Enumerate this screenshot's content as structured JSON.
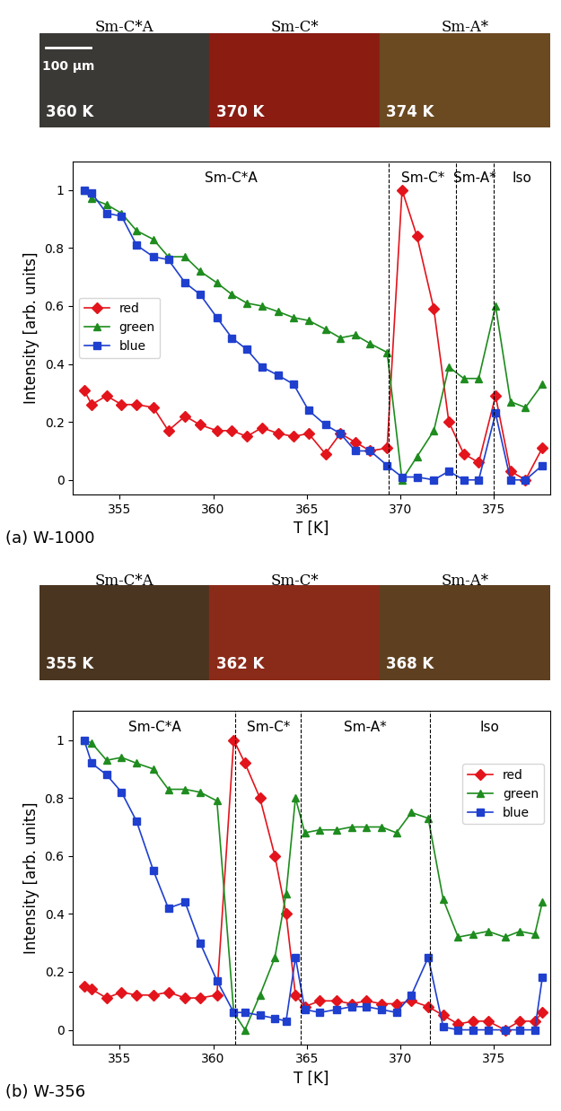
{
  "chart_data": [
    {
      "type": "line",
      "caption": "(a) W-1000",
      "images": [
        {
          "label": "Sm-C*A",
          "temperature": "360 K",
          "color": "#3b3936"
        },
        {
          "label": "Sm-C*",
          "temperature": "370 K",
          "color": "#8a1c12"
        },
        {
          "label": "Sm-A*",
          "temperature": "374 K",
          "color": "#6b4a22"
        }
      ],
      "scale_bar": "100 µm",
      "xlabel": "T [K]",
      "ylabel": "Intensity [arb. units]",
      "xlim": [
        352.5,
        378
      ],
      "xticks": [
        355,
        360,
        365,
        370,
        375
      ],
      "ylim": [
        -0.05,
        1.1
      ],
      "yticks": [
        0,
        0.2,
        0.4,
        0.6,
        0.8,
        1
      ],
      "phases": [
        "Sm-C*A",
        "Sm-C*",
        "Sm-A*",
        "Iso"
      ],
      "phase_boundaries": [
        369.4,
        373.0,
        375.0
      ],
      "legend": "center left",
      "x": [
        353.1,
        353.5,
        354.3,
        355.1,
        355.9,
        356.8,
        357.6,
        358.5,
        359.3,
        360.2,
        361.0,
        361.8,
        362.6,
        363.5,
        364.3,
        365.1,
        366.0,
        366.8,
        367.6,
        368.4,
        369.3,
        370.1,
        370.9,
        371.8,
        372.6,
        373.4,
        374.2,
        375.1,
        375.9,
        376.7,
        377.6
      ],
      "series": [
        {
          "name": "red",
          "color": "#e3141c",
          "marker": "diamond",
          "values": [
            0.31,
            0.26,
            0.29,
            0.26,
            0.26,
            0.25,
            0.17,
            0.22,
            0.19,
            0.17,
            0.17,
            0.15,
            0.18,
            0.16,
            0.15,
            0.16,
            0.09,
            0.16,
            0.13,
            0.1,
            0.11,
            1.0,
            0.84,
            0.59,
            0.2,
            0.09,
            0.06,
            0.29,
            0.03,
            0.0,
            0.11
          ]
        },
        {
          "name": "green",
          "color": "#1e8c1e",
          "marker": "triangle",
          "values": [
            1.0,
            0.97,
            0.95,
            0.92,
            0.86,
            0.83,
            0.77,
            0.77,
            0.72,
            0.68,
            0.64,
            0.61,
            0.6,
            0.58,
            0.56,
            0.55,
            0.52,
            0.49,
            0.5,
            0.47,
            0.44,
            0.0,
            0.08,
            0.17,
            0.39,
            0.35,
            0.35,
            0.6,
            0.27,
            0.25,
            0.33
          ]
        },
        {
          "name": "blue",
          "color": "#1f3fcf",
          "marker": "square",
          "values": [
            1.0,
            0.99,
            0.92,
            0.91,
            0.81,
            0.77,
            0.76,
            0.68,
            0.64,
            0.56,
            0.49,
            0.45,
            0.39,
            0.36,
            0.33,
            0.24,
            0.19,
            0.16,
            0.1,
            0.1,
            0.05,
            0.01,
            0.01,
            0.0,
            0.03,
            0.0,
            0.0,
            0.23,
            0.0,
            0.0,
            0.05
          ]
        }
      ]
    },
    {
      "type": "line",
      "caption": "(b) W-356",
      "images": [
        {
          "label": "Sm-C*A",
          "temperature": "355 K",
          "color": "#4a3520"
        },
        {
          "label": "Sm-C*",
          "temperature": "362 K",
          "color": "#8a2a18"
        },
        {
          "label": "Sm-A*",
          "temperature": "368 K",
          "color": "#5e4020"
        }
      ],
      "xlabel": "T [K]",
      "ylabel": "Intensity [arb. units]",
      "xlim": [
        352.5,
        378
      ],
      "xticks": [
        355,
        360,
        365,
        370,
        375
      ],
      "ylim": [
        -0.05,
        1.1
      ],
      "yticks": [
        0,
        0.2,
        0.4,
        0.6,
        0.8,
        1
      ],
      "phases": [
        "Sm-C*A",
        "Sm-C*",
        "Sm-A*",
        "Iso"
      ],
      "phase_boundaries": [
        361.2,
        364.7,
        371.6
      ],
      "legend": "upper right",
      "x": [
        353.1,
        353.5,
        354.3,
        355.1,
        355.9,
        356.8,
        357.6,
        358.5,
        359.3,
        360.2,
        361.1,
        361.7,
        362.5,
        363.3,
        363.9,
        364.4,
        364.9,
        365.7,
        366.6,
        367.4,
        368.2,
        369.0,
        369.8,
        370.6,
        371.5,
        372.3,
        373.1,
        373.9,
        374.7,
        375.6,
        376.4,
        377.2,
        377.6
      ],
      "series": [
        {
          "name": "red",
          "color": "#e3141c",
          "marker": "diamond",
          "values": [
            0.15,
            0.14,
            0.11,
            0.13,
            0.12,
            0.12,
            0.13,
            0.11,
            0.11,
            0.12,
            1.0,
            0.92,
            0.8,
            0.6,
            0.4,
            0.12,
            0.08,
            0.1,
            0.1,
            0.09,
            0.1,
            0.09,
            0.09,
            0.1,
            0.08,
            0.05,
            0.02,
            0.03,
            0.03,
            0.0,
            0.03,
            0.03,
            0.06
          ]
        },
        {
          "name": "green",
          "color": "#1e8c1e",
          "marker": "triangle",
          "values": [
            1.0,
            0.99,
            0.93,
            0.94,
            0.92,
            0.9,
            0.83,
            0.83,
            0.82,
            0.79,
            0.06,
            0.0,
            0.12,
            0.25,
            0.47,
            0.8,
            0.68,
            0.69,
            0.69,
            0.7,
            0.7,
            0.7,
            0.68,
            0.75,
            0.73,
            0.45,
            0.32,
            0.33,
            0.34,
            0.32,
            0.34,
            0.33,
            0.44
          ]
        },
        {
          "name": "blue",
          "color": "#1f3fcf",
          "marker": "square",
          "values": [
            1.0,
            0.92,
            0.88,
            0.82,
            0.72,
            0.55,
            0.42,
            0.44,
            0.3,
            0.17,
            0.06,
            0.06,
            0.05,
            0.04,
            0.03,
            0.25,
            0.07,
            0.06,
            0.07,
            0.08,
            0.08,
            0.07,
            0.06,
            0.12,
            0.25,
            0.01,
            0.0,
            0.0,
            0.0,
            0.0,
            0.0,
            0.0,
            0.18
          ]
        }
      ]
    }
  ]
}
